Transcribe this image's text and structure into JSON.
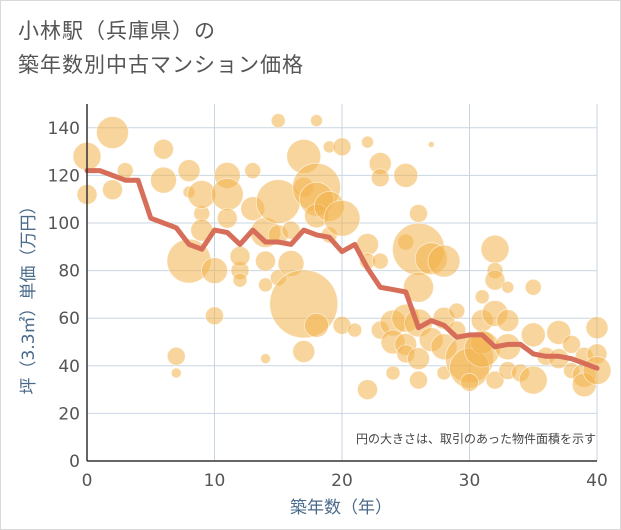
{
  "title_lines": [
    "小林駅（兵庫県）の",
    "築年数別中古マンション価格"
  ],
  "chart_data": {
    "type": "scatter",
    "title": "小林駅（兵庫県）の築年数別中古マンション価格",
    "xlabel": "築年数（年）",
    "ylabel": "坪（3.3㎡）単価（万円）",
    "xlim": [
      0,
      40
    ],
    "ylim": [
      0,
      150
    ],
    "x_ticks": [
      0,
      10,
      20,
      30,
      40
    ],
    "y_ticks": [
      0,
      20,
      40,
      60,
      80,
      100,
      120,
      140
    ],
    "grid": true,
    "note": "円の大きさは、取引のあった物件面積を示す",
    "colors": {
      "bubble": "#f2b24a",
      "line": "#d66e5a",
      "grid": "#c8d6e2",
      "axis": "#333333"
    },
    "bubbles": [
      {
        "x": 0,
        "y": 128,
        "s": 14
      },
      {
        "x": 0,
        "y": 112,
        "s": 10
      },
      {
        "x": 2,
        "y": 138,
        "s": 16
      },
      {
        "x": 2,
        "y": 114,
        "s": 10
      },
      {
        "x": 3,
        "y": 122,
        "s": 8
      },
      {
        "x": 6,
        "y": 131,
        "s": 10
      },
      {
        "x": 6,
        "y": 118,
        "s": 13
      },
      {
        "x": 7,
        "y": 44,
        "s": 9
      },
      {
        "x": 7,
        "y": 37,
        "s": 5
      },
      {
        "x": 8,
        "y": 122,
        "s": 11
      },
      {
        "x": 8,
        "y": 84,
        "s": 22
      },
      {
        "x": 8,
        "y": 113,
        "s": 6
      },
      {
        "x": 9,
        "y": 104,
        "s": 8
      },
      {
        "x": 9,
        "y": 97,
        "s": 11
      },
      {
        "x": 9,
        "y": 112,
        "s": 14
      },
      {
        "x": 10,
        "y": 80,
        "s": 13
      },
      {
        "x": 10,
        "y": 61,
        "s": 9
      },
      {
        "x": 11,
        "y": 120,
        "s": 13
      },
      {
        "x": 11,
        "y": 112,
        "s": 16
      },
      {
        "x": 11,
        "y": 102,
        "s": 10
      },
      {
        "x": 12,
        "y": 80,
        "s": 9
      },
      {
        "x": 12,
        "y": 86,
        "s": 10
      },
      {
        "x": 12,
        "y": 76,
        "s": 7
      },
      {
        "x": 13,
        "y": 122,
        "s": 8
      },
      {
        "x": 13,
        "y": 106,
        "s": 12
      },
      {
        "x": 14,
        "y": 96,
        "s": 15
      },
      {
        "x": 14,
        "y": 84,
        "s": 10
      },
      {
        "x": 14,
        "y": 74,
        "s": 7
      },
      {
        "x": 14,
        "y": 43,
        "s": 5
      },
      {
        "x": 15,
        "y": 143,
        "s": 7
      },
      {
        "x": 15,
        "y": 109,
        "s": 22
      },
      {
        "x": 15,
        "y": 95,
        "s": 10
      },
      {
        "x": 15,
        "y": 77,
        "s": 8
      },
      {
        "x": 16,
        "y": 83,
        "s": 13
      },
      {
        "x": 16,
        "y": 97,
        "s": 9
      },
      {
        "x": 17,
        "y": 128,
        "s": 17
      },
      {
        "x": 17,
        "y": 115,
        "s": 10
      },
      {
        "x": 17,
        "y": 66,
        "s": 34
      },
      {
        "x": 17,
        "y": 46,
        "s": 11
      },
      {
        "x": 18,
        "y": 143,
        "s": 6
      },
      {
        "x": 18,
        "y": 115,
        "s": 24
      },
      {
        "x": 18,
        "y": 110,
        "s": 17
      },
      {
        "x": 18,
        "y": 103,
        "s": 12
      },
      {
        "x": 18,
        "y": 57,
        "s": 12
      },
      {
        "x": 19,
        "y": 107,
        "s": 15
      },
      {
        "x": 19,
        "y": 95,
        "s": 8
      },
      {
        "x": 19,
        "y": 132,
        "s": 6
      },
      {
        "x": 20,
        "y": 132,
        "s": 9
      },
      {
        "x": 20,
        "y": 102,
        "s": 18
      },
      {
        "x": 20,
        "y": 57,
        "s": 9
      },
      {
        "x": 21,
        "y": 55,
        "s": 7
      },
      {
        "x": 22,
        "y": 134,
        "s": 6
      },
      {
        "x": 22,
        "y": 91,
        "s": 11
      },
      {
        "x": 22,
        "y": 84,
        "s": 8
      },
      {
        "x": 22,
        "y": 30,
        "s": 10
      },
      {
        "x": 23,
        "y": 125,
        "s": 11
      },
      {
        "x": 23,
        "y": 119,
        "s": 9
      },
      {
        "x": 23,
        "y": 84,
        "s": 8
      },
      {
        "x": 23,
        "y": 55,
        "s": 9
      },
      {
        "x": 24,
        "y": 58,
        "s": 13
      },
      {
        "x": 24,
        "y": 50,
        "s": 12
      },
      {
        "x": 24,
        "y": 37,
        "s": 7
      },
      {
        "x": 25,
        "y": 120,
        "s": 12
      },
      {
        "x": 25,
        "y": 92,
        "s": 8
      },
      {
        "x": 25,
        "y": 60,
        "s": 14
      },
      {
        "x": 25,
        "y": 49,
        "s": 11
      },
      {
        "x": 25,
        "y": 45,
        "s": 9
      },
      {
        "x": 26,
        "y": 104,
        "s": 9
      },
      {
        "x": 26,
        "y": 89,
        "s": 26
      },
      {
        "x": 26,
        "y": 73,
        "s": 15
      },
      {
        "x": 26,
        "y": 58,
        "s": 14
      },
      {
        "x": 26,
        "y": 43,
        "s": 11
      },
      {
        "x": 26,
        "y": 34,
        "s": 9
      },
      {
        "x": 27,
        "y": 133,
        "s": 3
      },
      {
        "x": 27,
        "y": 85,
        "s": 16
      },
      {
        "x": 27,
        "y": 51,
        "s": 12
      },
      {
        "x": 28,
        "y": 84,
        "s": 16
      },
      {
        "x": 28,
        "y": 60,
        "s": 11
      },
      {
        "x": 28,
        "y": 48,
        "s": 13
      },
      {
        "x": 28,
        "y": 37,
        "s": 7
      },
      {
        "x": 29,
        "y": 63,
        "s": 8
      },
      {
        "x": 29,
        "y": 55,
        "s": 9
      },
      {
        "x": 30,
        "y": 43,
        "s": 24
      },
      {
        "x": 30,
        "y": 39,
        "s": 20
      },
      {
        "x": 30,
        "y": 33,
        "s": 9
      },
      {
        "x": 31,
        "y": 59,
        "s": 11
      },
      {
        "x": 31,
        "y": 50,
        "s": 12
      },
      {
        "x": 31,
        "y": 69,
        "s": 7
      },
      {
        "x": 31,
        "y": 47,
        "s": 18
      },
      {
        "x": 32,
        "y": 89,
        "s": 14
      },
      {
        "x": 32,
        "y": 80,
        "s": 8
      },
      {
        "x": 32,
        "y": 76,
        "s": 10
      },
      {
        "x": 32,
        "y": 62,
        "s": 13
      },
      {
        "x": 32,
        "y": 34,
        "s": 9
      },
      {
        "x": 33,
        "y": 73,
        "s": 6
      },
      {
        "x": 33,
        "y": 59,
        "s": 11
      },
      {
        "x": 33,
        "y": 48,
        "s": 13
      },
      {
        "x": 33,
        "y": 38,
        "s": 9
      },
      {
        "x": 34,
        "y": 37,
        "s": 9
      },
      {
        "x": 35,
        "y": 73,
        "s": 8
      },
      {
        "x": 35,
        "y": 53,
        "s": 12
      },
      {
        "x": 35,
        "y": 34,
        "s": 14
      },
      {
        "x": 36,
        "y": 44,
        "s": 9
      },
      {
        "x": 37,
        "y": 54,
        "s": 12
      },
      {
        "x": 37,
        "y": 43,
        "s": 10
      },
      {
        "x": 38,
        "y": 49,
        "s": 9
      },
      {
        "x": 38,
        "y": 38,
        "s": 8
      },
      {
        "x": 39,
        "y": 36,
        "s": 12
      },
      {
        "x": 39,
        "y": 32,
        "s": 12
      },
      {
        "x": 39,
        "y": 44,
        "s": 9
      },
      {
        "x": 40,
        "y": 56,
        "s": 11
      },
      {
        "x": 40,
        "y": 45,
        "s": 10
      },
      {
        "x": 40,
        "y": 38,
        "s": 14
      }
    ],
    "trend": {
      "x": [
        0,
        1,
        2,
        3,
        4,
        5,
        6,
        7,
        8,
        9,
        10,
        11,
        12,
        13,
        14,
        15,
        16,
        17,
        18,
        19,
        20,
        21,
        22,
        23,
        24,
        25,
        26,
        27,
        28,
        29,
        30,
        31,
        32,
        33,
        34,
        35,
        36,
        37,
        38,
        39,
        40
      ],
      "y": [
        122,
        122,
        120,
        118,
        118,
        102,
        100,
        98,
        91,
        89,
        97,
        96,
        91,
        97,
        92,
        92,
        91,
        97,
        95,
        94,
        88,
        91,
        81,
        73,
        72,
        71,
        56,
        59,
        57,
        52,
        53,
        53,
        48,
        49,
        49,
        45,
        44,
        44,
        43,
        41,
        39
      ]
    }
  }
}
